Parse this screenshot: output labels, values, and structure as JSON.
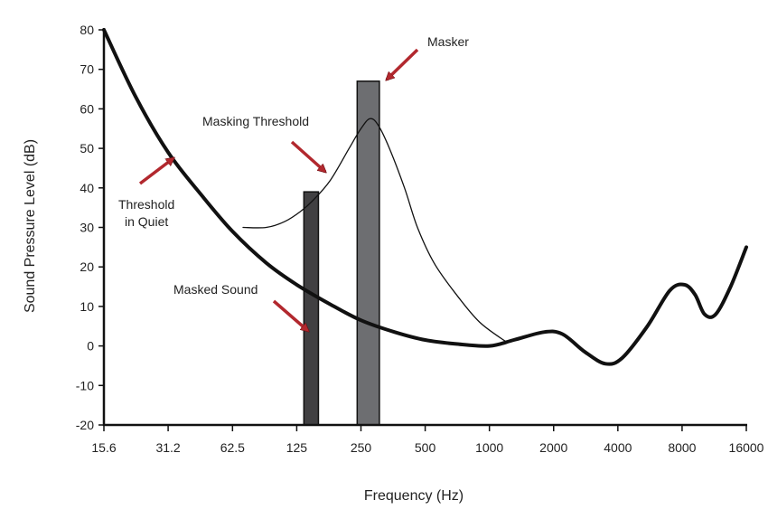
{
  "chart_data": {
    "type": "line",
    "xlabel": "Frequency (Hz)",
    "ylabel": "Sound Pressure Level (dB)",
    "ylim": [
      -20,
      80
    ],
    "x_scale": "log2",
    "x_ticks": [
      15.6,
      31.2,
      62.5,
      125,
      250,
      500,
      1000,
      2000,
      4000,
      8000,
      16000
    ],
    "x_tick_labels": [
      "15.6",
      "31.2",
      "62.5",
      "125",
      "250",
      "500",
      "1000",
      "2000",
      "4000",
      "8000",
      "16000"
    ],
    "y_ticks": [
      -20,
      -10,
      0,
      10,
      20,
      30,
      40,
      50,
      60,
      70,
      80
    ],
    "y_tick_labels": [
      "-20",
      "-10",
      "0",
      "10",
      "20",
      "30",
      "40",
      "50",
      "60",
      "70",
      "80"
    ],
    "grid": false,
    "series": [
      {
        "name": "Threshold in Quiet",
        "x": [
          15.6,
          22,
          31.2,
          45,
          62.5,
          90,
          125,
          180,
          250,
          360,
          500,
          700,
          1000,
          1300,
          1800,
          2200,
          2800,
          3500,
          4200,
          5500,
          7000,
          8200,
          9200,
          10200,
          11500,
          13500,
          16000
        ],
        "y": [
          80,
          63,
          49,
          38,
          29,
          21,
          15.5,
          10.5,
          6.5,
          3.5,
          1.5,
          0.5,
          0,
          1.5,
          3.5,
          3,
          -1.5,
          -4.5,
          -3,
          5,
          14,
          15.5,
          13,
          8,
          8,
          15,
          25
        ]
      },
      {
        "name": "Masking Threshold",
        "x": [
          70,
          90,
          110,
          130,
          150,
          180,
          220,
          250,
          275,
          300,
          340,
          400,
          460,
          550,
          700,
          900,
          1200
        ],
        "y": [
          30,
          30,
          31.5,
          34,
          37,
          42,
          50,
          55,
          57.5,
          56,
          50,
          40,
          30,
          21,
          13,
          6,
          1
        ]
      }
    ],
    "bars": [
      {
        "name": "Masker",
        "x_left": 240,
        "x_right": 305,
        "y_top": 67,
        "y_bottom": -20,
        "color": "#6d6e71"
      },
      {
        "name": "Masked Sound",
        "x_left": 135,
        "x_right": 158,
        "y_top": 39,
        "y_bottom": -20,
        "color": "#414042"
      }
    ],
    "annotations": [
      {
        "text": "Masker",
        "target": "Masker"
      },
      {
        "text": "Masking Threshold",
        "target": "Masking Threshold"
      },
      {
        "lines": [
          "Threshold",
          "in Quiet"
        ],
        "target": "Threshold in Quiet"
      },
      {
        "text": "Masked Sound",
        "target": "Masked Sound"
      }
    ],
    "colors": {
      "curve": "#111111",
      "arrow": "#b2282e",
      "axis": "#111111"
    }
  }
}
